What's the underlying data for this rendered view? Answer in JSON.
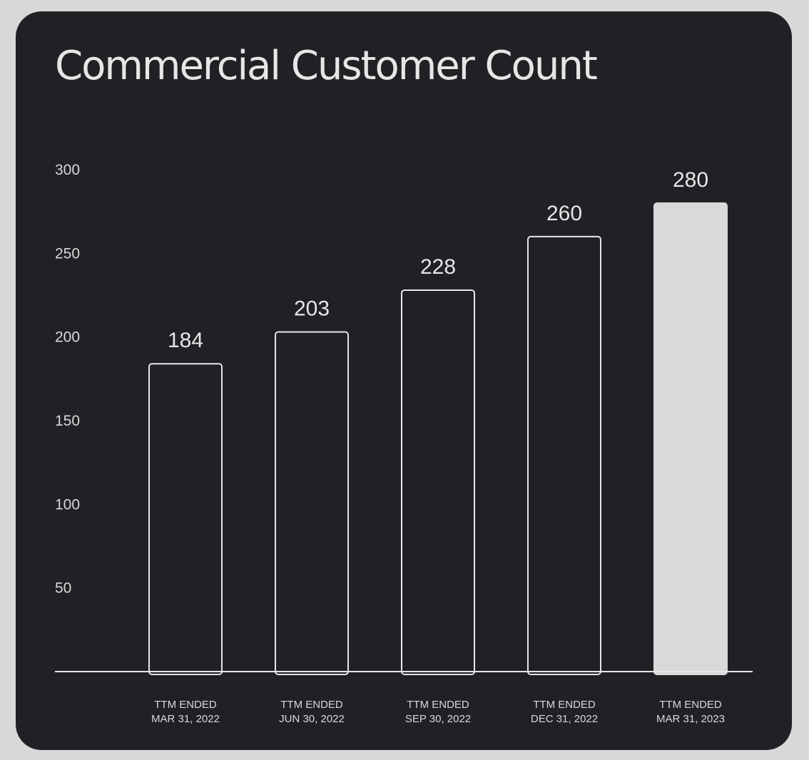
{
  "chart_data": {
    "type": "bar",
    "title": "Commercial Customer Count",
    "categories": [
      [
        "TTM ENDED",
        "MAR 31, 2022"
      ],
      [
        "TTM ENDED",
        "JUN 30, 2022"
      ],
      [
        "TTM ENDED",
        "SEP 30, 2022"
      ],
      [
        "TTM ENDED",
        "DEC 31, 2022"
      ],
      [
        "TTM ENDED",
        "MAR 31, 2023"
      ]
    ],
    "values": [
      184,
      203,
      228,
      260,
      280
    ],
    "value_labels": [
      "184",
      "203",
      "228",
      "260",
      "280"
    ],
    "yticks": [
      50,
      100,
      150,
      200,
      250,
      300
    ],
    "ylim": [
      0,
      300
    ],
    "xlabel": "",
    "ylabel": "",
    "grid": false,
    "highlight_index": 4,
    "colors": {
      "background": "#1f2124",
      "page": "#d8d8d8",
      "outline": "#e6e6e6",
      "highlight_fill": "#d9d9d9",
      "text": "#e6e6e6"
    }
  }
}
